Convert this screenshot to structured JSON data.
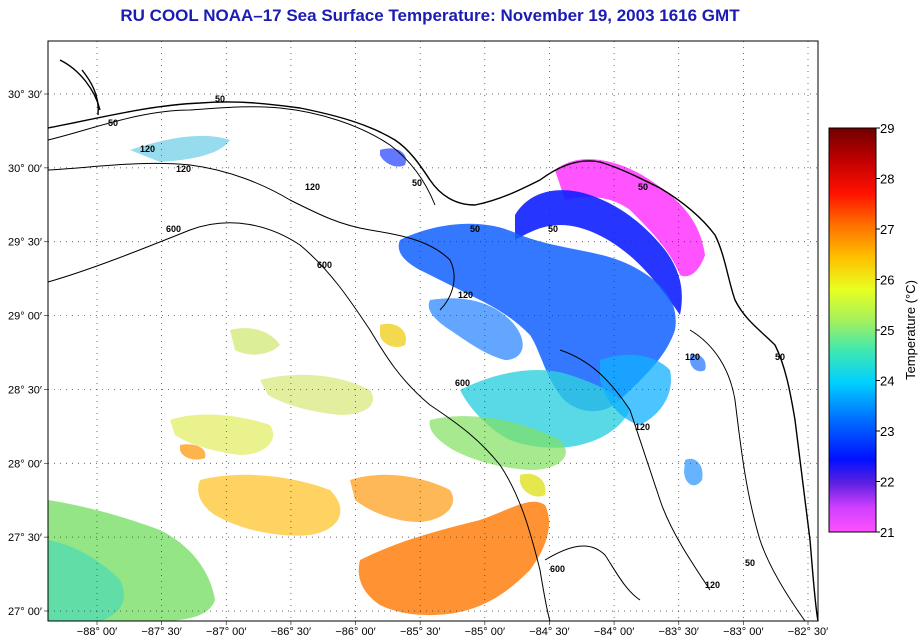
{
  "title": "RU COOL  NOAA–17  Sea Surface Temperature:  November 19, 2003 1616 GMT",
  "lat_labels": [
    "30° 30′",
    "30° 00′",
    "29° 30′",
    "29° 00′",
    "28° 30′",
    "28° 00′",
    "27° 30′",
    "27° 00′"
  ],
  "lon_labels": [
    "−88° 00′",
    "−87° 30′",
    "−87° 00′",
    "−86° 30′",
    "−86° 00′",
    "−85° 30′",
    "−85° 00′",
    "−84° 30′",
    "−84° 00′",
    "−83° 30′",
    "−83° 00′",
    "−82° 30′"
  ],
  "colorbar": {
    "label": "Temperature (°C)",
    "ticks": [
      "21",
      "22",
      "23",
      "24",
      "25",
      "26",
      "27",
      "28",
      "29"
    ],
    "colors": [
      "#ff50ff",
      "#7030d0",
      "#0010ff",
      "#0070ff",
      "#00d0ff",
      "#40e0a0",
      "#a0f060",
      "#e8ff20",
      "#ffc000",
      "#ff7000",
      "#ff1000",
      "#b00000",
      "#700000"
    ]
  },
  "contour_labels": [
    "50",
    "120",
    "600"
  ]
}
